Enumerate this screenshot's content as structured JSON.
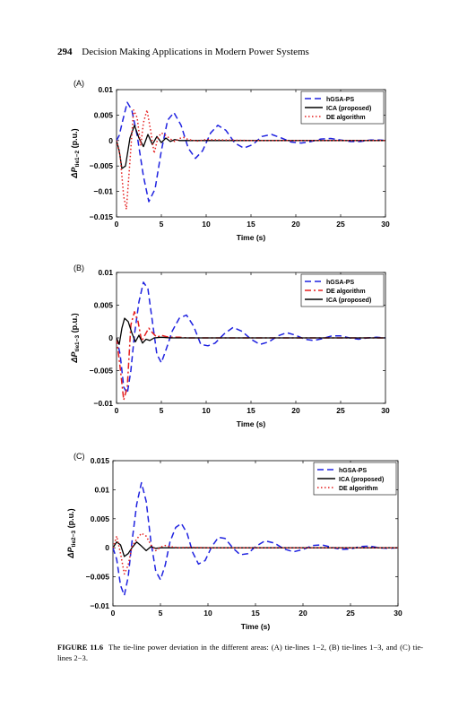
{
  "header": {
    "page_number": "294",
    "running_title": "Decision Making Applications in Modern Power Systems"
  },
  "caption": {
    "label": "FIGURE 11.6",
    "text": "The tie-line power deviation in the different areas: (A) tie-lines 1−2, (B) tie-lines 1−3, and (C) tie-lines 2−3."
  },
  "colors": {
    "hGSA-PS": "#1f22e0",
    "ICA": "#000000",
    "DE": "#e51e1e"
  },
  "chart_data": [
    {
      "panel": "(A)",
      "type": "line",
      "xlabel": "Time (s)",
      "ylabel_main": "ΔP",
      "ylabel_sub": "tie1−2",
      "ylabel_unit": " (p.u.)",
      "xlim": [
        0,
        30
      ],
      "ylim": [
        -0.015,
        0.01
      ],
      "xticks": [
        "0",
        "5",
        "10",
        "15",
        "20",
        "25",
        "30"
      ],
      "xtick_values": [
        0,
        5,
        10,
        15,
        20,
        25,
        30
      ],
      "yticks": [
        "−0.015",
        "−0.01",
        "−0.005",
        "0",
        "0.005",
        "0.01"
      ],
      "ytick_values": [
        -0.015,
        -0.01,
        -0.005,
        0,
        0.005,
        0.01
      ],
      "legend": [
        "hGSA-PS",
        "ICA (proposed)",
        "DE algorithm"
      ],
      "series": [
        {
          "name": "hGSA-PS",
          "style": "dash",
          "color": "#1f22e0",
          "x": [
            0,
            0.3,
            0.7,
            1.2,
            1.7,
            2.3,
            3.0,
            3.6,
            4.3,
            5.0,
            5.7,
            6.4,
            7.2,
            8.0,
            8.8,
            9.6,
            10.5,
            11.3,
            12.2,
            13.2,
            14.2,
            15.2,
            16.2,
            17.3,
            18.4,
            19.5,
            20.6,
            21.7,
            22.8,
            23.9,
            25.0,
            26.1,
            27.2,
            28.3,
            29.4,
            30
          ],
          "y": [
            0,
            0.001,
            0.004,
            0.0075,
            0.006,
            0.001,
            -0.007,
            -0.012,
            -0.0095,
            -0.002,
            0.004,
            0.0055,
            0.003,
            -0.0015,
            -0.0035,
            -0.002,
            0.0015,
            0.003,
            0.002,
            -0.0005,
            -0.0015,
            -0.0008,
            0.0008,
            0.0012,
            0.0005,
            -0.0003,
            -0.0005,
            -0.0002,
            0.0003,
            0.0004,
            0.0001,
            -0.0002,
            -0.0002,
            0.0001,
            0.0001,
            0
          ]
        },
        {
          "name": "ICA (proposed)",
          "style": "solid",
          "color": "#000000",
          "x": [
            0,
            0.3,
            0.6,
            1.0,
            1.5,
            2.0,
            2.5,
            3.0,
            3.5,
            4.0,
            4.5,
            5.0,
            5.5,
            6.0,
            6.5,
            7.0,
            8.0,
            10.0,
            15.0,
            20.0,
            25.0,
            30.0
          ],
          "y": [
            0,
            -0.002,
            -0.0055,
            -0.005,
            0.0005,
            0.003,
            0.0005,
            -0.0012,
            0.0012,
            -0.0008,
            0.0008,
            -0.0004,
            0.0005,
            -0.0002,
            0.0002,
            0,
            0,
            0,
            0,
            0,
            0,
            0
          ]
        },
        {
          "name": "DE algorithm",
          "style": "dot",
          "color": "#e51e1e",
          "x": [
            0,
            0.4,
            0.8,
            1.1,
            1.5,
            1.9,
            2.3,
            2.7,
            3.0,
            3.4,
            3.8,
            4.2,
            4.6,
            5.0,
            5.5,
            6.0,
            6.5,
            7.0,
            7.5,
            8.0,
            9.0,
            10.0,
            12.0,
            15.0,
            20.0,
            25.0,
            30.0
          ],
          "y": [
            0,
            -0.003,
            -0.011,
            -0.0135,
            -0.004,
            0.006,
            0.0045,
            -0.001,
            0.0035,
            0.006,
            0.002,
            -0.0025,
            0.0005,
            0.0015,
            0.001,
            0.0003,
            -0.0002,
            0.0004,
            0.0006,
            0.0002,
            -0.0001,
            0.0002,
            0.0001,
            0,
            0,
            0,
            0
          ]
        }
      ]
    },
    {
      "panel": "(B)",
      "type": "line",
      "xlabel": "Time (s)",
      "ylabel_main": "ΔP",
      "ylabel_sub": "tie1−3",
      "ylabel_unit": " (p.u.)",
      "xlim": [
        0,
        30
      ],
      "ylim": [
        -0.01,
        0.01
      ],
      "xticks": [
        "0",
        "5",
        "10",
        "15",
        "20",
        "25",
        "30"
      ],
      "xtick_values": [
        0,
        5,
        10,
        15,
        20,
        25,
        30
      ],
      "yticks": [
        "−0.01",
        "−0.005",
        "0",
        "0.005",
        "0.01"
      ],
      "ytick_values": [
        -0.01,
        -0.005,
        0,
        0.005,
        0.01
      ],
      "legend": [
        "hGSA-PS",
        "DE algorithm",
        "ICA (proposed)"
      ],
      "series": [
        {
          "name": "hGSA-PS",
          "style": "dash",
          "color": "#1f22e0",
          "x": [
            0,
            0.4,
            0.8,
            1.2,
            1.6,
            2.0,
            2.5,
            3.0,
            3.5,
            4.0,
            4.5,
            5.0,
            5.6,
            6.2,
            7.0,
            7.8,
            8.6,
            9.4,
            10.2,
            11.0,
            12.0,
            13.0,
            14.0,
            15.0,
            16.0,
            17.0,
            18.0,
            19.0,
            20.0,
            21.0,
            22.0,
            23.0,
            24.0,
            25.0,
            26.0,
            27.0,
            28.0,
            29.0,
            30.0
          ],
          "y": [
            0,
            -0.0025,
            -0.0075,
            -0.0085,
            -0.005,
            0.0005,
            0.0055,
            0.0085,
            0.0075,
            0.0025,
            -0.0025,
            -0.0038,
            -0.0015,
            0.001,
            0.003,
            0.0035,
            0.0018,
            -0.001,
            -0.0012,
            -0.0008,
            0.0006,
            0.0016,
            0.001,
            -0.0002,
            -0.001,
            -0.0006,
            0.0003,
            0.0008,
            0.0004,
            -0.0002,
            -0.0004,
            -0.0001,
            0.0003,
            0.0003,
            0,
            -0.0002,
            0,
            0.0001,
            0
          ]
        },
        {
          "name": "DE algorithm",
          "style": "dashdot",
          "color": "#e51e1e",
          "x": [
            0,
            0.4,
            0.8,
            1.2,
            1.6,
            2.0,
            2.4,
            2.8,
            3.2,
            3.6,
            4.0,
            4.5,
            5.0,
            5.5,
            6.0,
            7.0,
            8.0,
            10.0,
            15.0,
            20.0,
            25.0,
            30.0
          ],
          "y": [
            0,
            -0.0045,
            -0.0095,
            -0.0075,
            0.002,
            0.004,
            0.0025,
            -0.0005,
            0.0005,
            0.0015,
            0.0008,
            0.0001,
            0.0004,
            0.0002,
            0.0001,
            0.0001,
            0,
            0,
            0,
            0,
            0,
            0
          ]
        },
        {
          "name": "ICA (proposed)",
          "style": "solid",
          "color": "#000000",
          "x": [
            0,
            0.3,
            0.6,
            0.9,
            1.3,
            1.7,
            2.1,
            2.5,
            2.9,
            3.3,
            3.7,
            4.2,
            5.0,
            6.0,
            8.0,
            10.0,
            15.0,
            20.0,
            25.0,
            30.0
          ],
          "y": [
            0,
            -0.001,
            0.0015,
            0.003,
            0.0025,
            0.0008,
            -0.0006,
            0.0004,
            -0.0008,
            -0.0002,
            -0.0004,
            0,
            0.0001,
            0,
            0,
            0,
            0,
            0,
            0,
            0
          ]
        }
      ]
    },
    {
      "panel": "(C)",
      "type": "line",
      "xlabel": "Time (s)",
      "ylabel_main": "ΔP",
      "ylabel_sub": "tie2−3",
      "ylabel_unit": " (p.u.)",
      "xlim": [
        0,
        30
      ],
      "ylim": [
        -0.01,
        0.015
      ],
      "xticks": [
        "0",
        "5",
        "10",
        "15",
        "20",
        "25",
        "30"
      ],
      "xtick_values": [
        0,
        5,
        10,
        15,
        20,
        25,
        30
      ],
      "yticks": [
        "−0.01",
        "−0.005",
        "0",
        "0.005",
        "0.01",
        "0.015"
      ],
      "ytick_values": [
        -0.01,
        -0.005,
        0,
        0.005,
        0.01,
        0.015
      ],
      "legend": [
        "hGSA-PS",
        "ICA (proposed)",
        "DE algorithm"
      ],
      "series": [
        {
          "name": "hGSA-PS",
          "style": "dash",
          "color": "#1f22e0",
          "x": [
            0,
            0.4,
            0.8,
            1.2,
            1.6,
            2.0,
            2.5,
            3.0,
            3.5,
            4.0,
            4.5,
            5.0,
            5.5,
            6.0,
            6.6,
            7.2,
            7.8,
            8.4,
            9.0,
            9.7,
            10.4,
            11.1,
            11.8,
            12.6,
            13.4,
            14.2,
            15.0,
            16.0,
            17.0,
            18.0,
            19.0,
            20.0,
            21.0,
            22.0,
            23.0,
            24.0,
            25.0,
            26.0,
            27.0,
            28.0,
            29.0,
            30.0
          ],
          "y": [
            0,
            -0.002,
            -0.0065,
            -0.0082,
            -0.005,
            0.001,
            0.0075,
            0.0112,
            0.008,
            0.001,
            -0.004,
            -0.0055,
            -0.003,
            0.001,
            0.0035,
            0.0042,
            0.0025,
            -0.0008,
            -0.0028,
            -0.0022,
            0.0002,
            0.0018,
            0.0016,
            0,
            -0.0012,
            -0.001,
            0.0002,
            0.0012,
            0.0008,
            -0.0002,
            -0.0007,
            -0.0003,
            0.0004,
            0.0005,
            0.0001,
            -0.0003,
            -0.0002,
            0.0002,
            0.0003,
            0,
            -0.0001,
            0
          ]
        },
        {
          "name": "ICA (proposed)",
          "style": "solid",
          "color": "#000000",
          "x": [
            0,
            0.4,
            0.8,
            1.2,
            1.6,
            2.0,
            2.5,
            3.0,
            3.5,
            4.0,
            4.5,
            5.0,
            6.0,
            8.0,
            10.0,
            15.0,
            20.0,
            25.0,
            30.0
          ],
          "y": [
            0,
            0.001,
            0.0005,
            -0.0015,
            -0.001,
            0,
            0.001,
            0.0003,
            -0.0005,
            0.0002,
            -0.0001,
            0,
            0,
            0,
            0,
            0,
            0,
            0,
            0
          ]
        },
        {
          "name": "DE algorithm",
          "style": "dot",
          "color": "#e51e1e",
          "x": [
            0,
            0.4,
            0.8,
            1.2,
            1.6,
            2.0,
            2.5,
            3.0,
            3.5,
            4.0,
            4.5,
            5.0,
            5.5,
            6.0,
            7.0,
            8.0,
            10.0,
            12.0,
            15.0,
            20.0,
            25.0,
            30.0
          ],
          "y": [
            0,
            0.002,
            -0.001,
            -0.0045,
            -0.003,
            0.0002,
            0.0015,
            0.0025,
            0.002,
            0.0005,
            -0.0005,
            0.0001,
            0.0004,
            0.0002,
            0,
            0.0001,
            0,
            0,
            0,
            0,
            0,
            0
          ]
        }
      ]
    }
  ]
}
